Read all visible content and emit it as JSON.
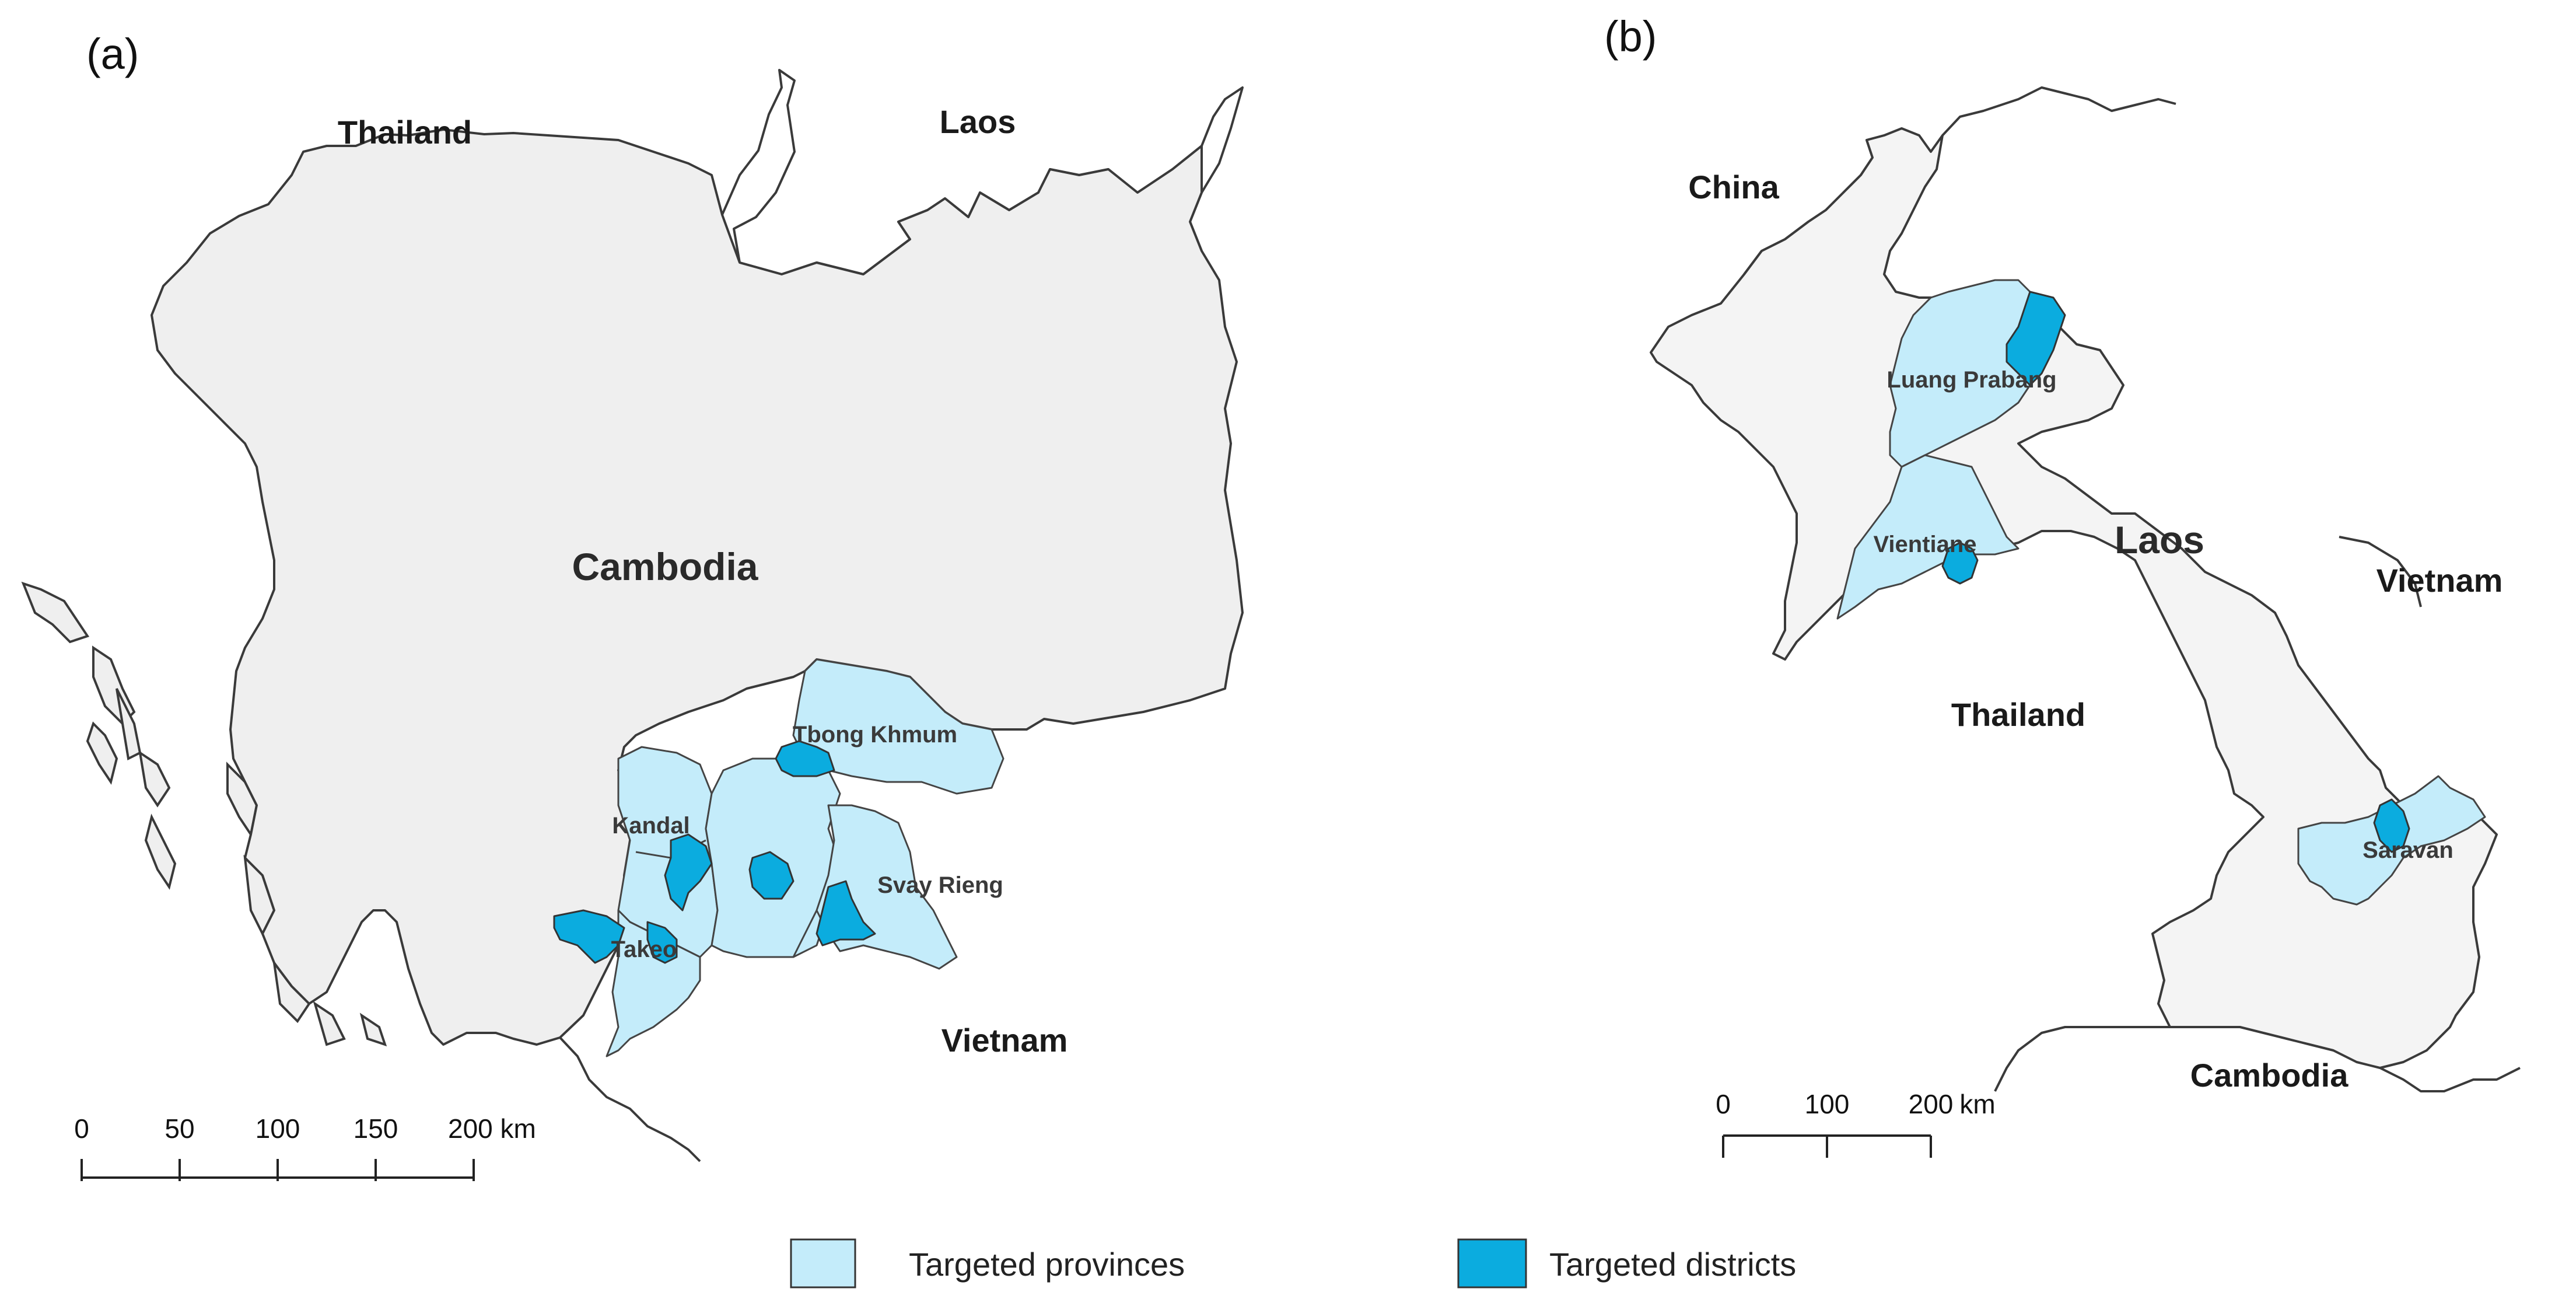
{
  "panel_a": {
    "label": "(a)",
    "countries": {
      "thailand": "Thailand",
      "laos": "Laos",
      "cambodia": "Cambodia",
      "vietnam": "Vietnam"
    },
    "provinces": {
      "tbong_khmum": "Tbong Khmum",
      "kandal": "Kandal",
      "svay_rieng": "Svay Rieng",
      "takeo": "Takeo"
    },
    "scale": {
      "ticks": [
        "0",
        "50",
        "100",
        "150",
        "200 km"
      ]
    }
  },
  "panel_b": {
    "label": "(b)",
    "countries": {
      "china": "China",
      "laos": "Laos",
      "vietnam": "Vietnam",
      "thailand": "Thailand",
      "cambodia": "Cambodia"
    },
    "provinces": {
      "luang_prabang": "Luang Prabang",
      "vientiane": "Vientiane",
      "saravan": "Saravan"
    },
    "scale": {
      "ticks": [
        "0",
        "100",
        "200"
      ],
      "unit": "km"
    }
  },
  "legend": {
    "provinces_label": "Targeted provinces",
    "districts_label": "Targeted districts"
  },
  "colors": {
    "targeted_provinces": "#c4ecfa",
    "targeted_districts": "#0bacdf",
    "land_focus": "#efefef",
    "border": "#3a3a3a"
  }
}
